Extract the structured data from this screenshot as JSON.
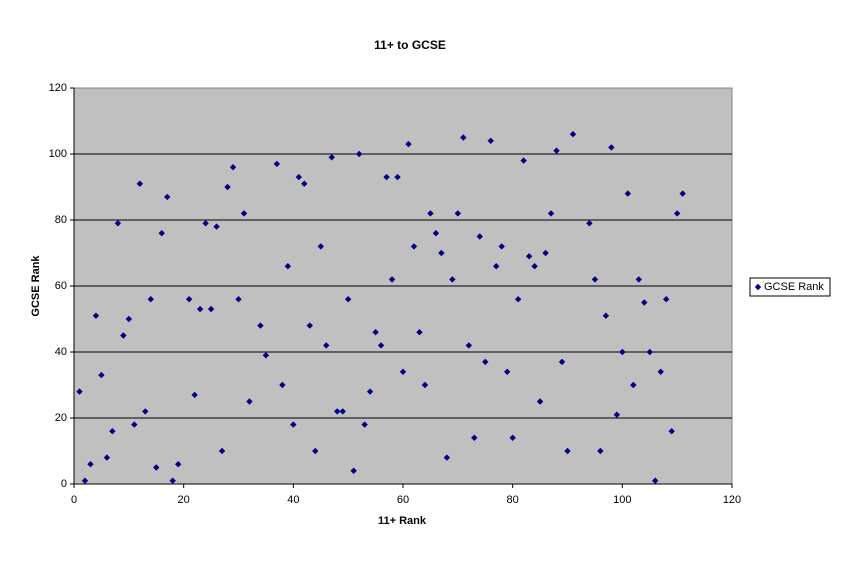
{
  "chart_data": {
    "type": "scatter",
    "title": "11+ to GCSE",
    "x_label": "11+ Rank",
    "y_label": "GCSE Rank",
    "xlim": [
      0,
      120
    ],
    "xticks": [
      0,
      20,
      40,
      60,
      80,
      100,
      120
    ],
    "ylim": [
      0,
      120
    ],
    "yticks": [
      0,
      20,
      40,
      60,
      80,
      100,
      120
    ],
    "grid": true,
    "legend": "right",
    "series": [
      {
        "name": "GCSE Rank",
        "color": "#000080",
        "x": [
          1,
          2,
          3,
          4,
          5,
          6,
          7,
          8,
          9,
          10,
          11,
          12,
          13,
          14,
          15,
          16,
          17,
          18,
          19,
          21,
          22,
          23,
          24,
          25,
          26,
          27,
          28,
          29,
          30,
          31,
          32,
          34,
          35,
          37,
          38,
          39,
          40,
          41,
          42,
          43,
          44,
          45,
          46,
          47,
          48,
          49,
          50,
          51,
          52,
          53,
          54,
          55,
          56,
          57,
          58,
          59,
          60,
          61,
          62,
          63,
          64,
          65,
          66,
          67,
          68,
          69,
          70,
          71,
          72,
          73,
          74,
          75,
          76,
          77,
          78,
          79,
          80,
          81,
          82,
          83,
          84,
          85,
          86,
          87,
          88,
          89,
          90,
          91,
          94,
          95,
          96,
          97,
          98,
          99,
          100,
          101,
          102,
          103,
          104,
          105,
          106,
          107,
          108,
          109,
          110,
          111
        ],
        "values": [
          28,
          1,
          6,
          51,
          33,
          8,
          16,
          79,
          45,
          50,
          18,
          91,
          22,
          56,
          5,
          76,
          87,
          1,
          6,
          56,
          27,
          53,
          79,
          53,
          78,
          10,
          90,
          96,
          56,
          82,
          25,
          48,
          39,
          97,
          30,
          66,
          18,
          93,
          91,
          48,
          10,
          72,
          42,
          99,
          22,
          22,
          56,
          4,
          100,
          18,
          28,
          46,
          42,
          93,
          62,
          93,
          34,
          103,
          72,
          46,
          30,
          82,
          76,
          70,
          8,
          62,
          82,
          105,
          42,
          14,
          75,
          37,
          104,
          66,
          72,
          34,
          14,
          56,
          98,
          69,
          66,
          25,
          70,
          82,
          101,
          37,
          10,
          106,
          79,
          62,
          10,
          51,
          102,
          21,
          40,
          88,
          30,
          62,
          55,
          40,
          1,
          34,
          56,
          16,
          82,
          88
        ]
      }
    ]
  }
}
